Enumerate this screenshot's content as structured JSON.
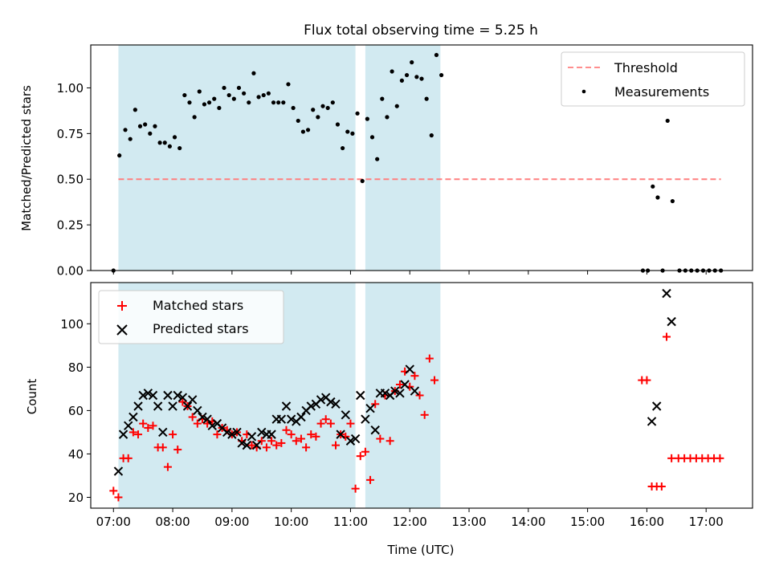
{
  "chart_data": [
    {
      "type": "scatter",
      "title": "Flux total observing time = 5.25 h",
      "xlabel": "",
      "ylabel": "Matched/Predicted stars",
      "xlim": [
        "06:37",
        "17:47"
      ],
      "ylim": [
        0,
        1.235
      ],
      "yticks": [
        0.0,
        0.25,
        0.5,
        0.75,
        1.0
      ],
      "ytick_labels": [
        "0.00",
        "0.25",
        "0.50",
        "0.75",
        "1.00"
      ],
      "grid": false,
      "legend_position": "upper right",
      "shaded_spans": [
        [
          "07:05",
          "11:05"
        ],
        [
          "11:15",
          "12:31"
        ]
      ],
      "shade_color": "#add8e6",
      "series": [
        {
          "name": "Threshold",
          "kind": "dashed-line",
          "color": "#ff7f7f",
          "x": [
            "07:05",
            "17:15"
          ],
          "y": [
            0.5,
            0.5
          ]
        },
        {
          "name": "Measurements",
          "kind": "dots",
          "color": "#000000",
          "points": [
            [
              "07:00",
              0.0
            ],
            [
              "07:06",
              0.63
            ],
            [
              "07:12",
              0.77
            ],
            [
              "07:17",
              0.72
            ],
            [
              "07:22",
              0.88
            ],
            [
              "07:27",
              0.79
            ],
            [
              "07:32",
              0.8
            ],
            [
              "07:37",
              0.75
            ],
            [
              "07:42",
              0.79
            ],
            [
              "07:47",
              0.7
            ],
            [
              "07:52",
              0.7
            ],
            [
              "07:57",
              0.68
            ],
            [
              "08:02",
              0.73
            ],
            [
              "08:07",
              0.67
            ],
            [
              "08:12",
              0.96
            ],
            [
              "08:17",
              0.92
            ],
            [
              "08:22",
              0.84
            ],
            [
              "08:27",
              0.98
            ],
            [
              "08:32",
              0.91
            ],
            [
              "08:37",
              0.92
            ],
            [
              "08:42",
              0.94
            ],
            [
              "08:47",
              0.89
            ],
            [
              "08:52",
              1.0
            ],
            [
              "08:57",
              0.96
            ],
            [
              "09:02",
              0.94
            ],
            [
              "09:07",
              1.0
            ],
            [
              "09:12",
              0.97
            ],
            [
              "09:17",
              0.92
            ],
            [
              "09:22",
              1.08
            ],
            [
              "09:27",
              0.95
            ],
            [
              "09:32",
              0.96
            ],
            [
              "09:37",
              0.97
            ],
            [
              "09:42",
              0.92
            ],
            [
              "09:47",
              0.92
            ],
            [
              "09:52",
              0.92
            ],
            [
              "09:57",
              1.02
            ],
            [
              "10:02",
              0.89
            ],
            [
              "10:07",
              0.82
            ],
            [
              "10:12",
              0.76
            ],
            [
              "10:17",
              0.77
            ],
            [
              "10:22",
              0.88
            ],
            [
              "10:27",
              0.84
            ],
            [
              "10:32",
              0.9
            ],
            [
              "10:37",
              0.89
            ],
            [
              "10:42",
              0.92
            ],
            [
              "10:47",
              0.8
            ],
            [
              "10:52",
              0.67
            ],
            [
              "10:57",
              0.76
            ],
            [
              "11:02",
              0.75
            ],
            [
              "11:07",
              0.86
            ],
            [
              "11:12",
              0.49
            ],
            [
              "11:17",
              0.83
            ],
            [
              "11:22",
              0.73
            ],
            [
              "11:27",
              0.61
            ],
            [
              "11:32",
              0.94
            ],
            [
              "11:37",
              0.84
            ],
            [
              "11:42",
              1.09
            ],
            [
              "11:47",
              0.9
            ],
            [
              "11:52",
              1.04
            ],
            [
              "11:57",
              1.07
            ],
            [
              "12:02",
              1.14
            ],
            [
              "12:07",
              1.06
            ],
            [
              "12:12",
              1.05
            ],
            [
              "12:17",
              0.94
            ],
            [
              "12:22",
              0.74
            ],
            [
              "12:27",
              1.18
            ],
            [
              "12:32",
              1.07
            ],
            [
              "15:56",
              0.0
            ],
            [
              "16:01",
              0.0
            ],
            [
              "16:06",
              0.46
            ],
            [
              "16:11",
              0.4
            ],
            [
              "16:16",
              0.0
            ],
            [
              "16:21",
              0.82
            ],
            [
              "16:26",
              0.38
            ],
            [
              "16:33",
              0.0
            ],
            [
              "16:39",
              0.0
            ],
            [
              "16:45",
              0.0
            ],
            [
              "16:51",
              0.0
            ],
            [
              "16:57",
              0.0
            ],
            [
              "17:03",
              0.0
            ],
            [
              "17:09",
              0.0
            ],
            [
              "17:15",
              0.0
            ]
          ]
        }
      ]
    },
    {
      "type": "scatter",
      "title": "",
      "xlabel": "Time (UTC)",
      "ylabel": "Count",
      "xlim": [
        "06:37",
        "17:47"
      ],
      "ylim": [
        15,
        119
      ],
      "yticks": [
        20,
        40,
        60,
        80,
        100
      ],
      "ytick_labels": [
        "20",
        "40",
        "60",
        "80",
        "100"
      ],
      "xticks": [
        "07:00",
        "08:00",
        "09:00",
        "10:00",
        "11:00",
        "12:00",
        "13:00",
        "14:00",
        "15:00",
        "16:00",
        "17:00"
      ],
      "grid": false,
      "legend_position": "upper left",
      "shaded_spans": [
        [
          "07:05",
          "11:05"
        ],
        [
          "11:15",
          "12:31"
        ]
      ],
      "shade_color": "#add8e6",
      "series": [
        {
          "name": "Matched stars",
          "marker": "plus",
          "color": "#ff0000",
          "points": [
            [
              "07:00",
              23
            ],
            [
              "07:05",
              20
            ],
            [
              "07:10",
              38
            ],
            [
              "07:15",
              38
            ],
            [
              "07:20",
              50
            ],
            [
              "07:25",
              49
            ],
            [
              "07:30",
              54
            ],
            [
              "07:35",
              52
            ],
            [
              "07:40",
              53
            ],
            [
              "07:45",
              43
            ],
            [
              "07:50",
              43
            ],
            [
              "07:55",
              34
            ],
            [
              "08:00",
              49
            ],
            [
              "08:05",
              42
            ],
            [
              "08:10",
              64
            ],
            [
              "08:15",
              62
            ],
            [
              "08:20",
              57
            ],
            [
              "08:25",
              54
            ],
            [
              "08:30",
              56
            ],
            [
              "08:35",
              54
            ],
            [
              "08:40",
              55
            ],
            [
              "08:45",
              49
            ],
            [
              "08:50",
              52
            ],
            [
              "08:55",
              51
            ],
            [
              "09:00",
              49
            ],
            [
              "09:05",
              50
            ],
            [
              "09:10",
              46
            ],
            [
              "09:15",
              49
            ],
            [
              "09:20",
              44
            ],
            [
              "09:25",
              43
            ],
            [
              "09:30",
              46
            ],
            [
              "09:35",
              43
            ],
            [
              "09:40",
              46
            ],
            [
              "09:45",
              44
            ],
            [
              "09:50",
              45
            ],
            [
              "09:55",
              51
            ],
            [
              "10:00",
              49
            ],
            [
              "10:05",
              46
            ],
            [
              "10:10",
              47
            ],
            [
              "10:15",
              43
            ],
            [
              "10:20",
              49
            ],
            [
              "10:25",
              48
            ],
            [
              "10:30",
              54
            ],
            [
              "10:35",
              56
            ],
            [
              "10:40",
              54
            ],
            [
              "10:45",
              44
            ],
            [
              "10:50",
              49
            ],
            [
              "10:55",
              48
            ],
            [
              "11:00",
              54
            ],
            [
              "11:05",
              24
            ],
            [
              "11:10",
              39
            ],
            [
              "11:15",
              41
            ],
            [
              "11:20",
              28
            ],
            [
              "11:25",
              63
            ],
            [
              "11:30",
              47
            ],
            [
              "11:35",
              67
            ],
            [
              "11:40",
              46
            ],
            [
              "11:45",
              69
            ],
            [
              "11:50",
              72
            ],
            [
              "11:55",
              78
            ],
            [
              "12:00",
              71
            ],
            [
              "12:05",
              76
            ],
            [
              "12:10",
              67
            ],
            [
              "12:15",
              58
            ],
            [
              "12:20",
              84
            ],
            [
              "12:25",
              74
            ],
            [
              "15:55",
              74
            ],
            [
              "16:00",
              74
            ],
            [
              "16:05",
              25
            ],
            [
              "16:10",
              25
            ],
            [
              "16:15",
              25
            ],
            [
              "16:20",
              94
            ],
            [
              "16:25",
              38
            ],
            [
              "16:32",
              38
            ],
            [
              "16:38",
              38
            ],
            [
              "16:44",
              38
            ],
            [
              "16:50",
              38
            ],
            [
              "16:56",
              38
            ],
            [
              "17:02",
              38
            ],
            [
              "17:08",
              38
            ],
            [
              "17:14",
              38
            ]
          ]
        },
        {
          "name": "Predicted stars",
          "marker": "x",
          "color": "#000000",
          "points": [
            [
              "07:05",
              32
            ],
            [
              "07:10",
              49
            ],
            [
              "07:15",
              53
            ],
            [
              "07:20",
              57
            ],
            [
              "07:25",
              62
            ],
            [
              "07:30",
              67
            ],
            [
              "07:35",
              68
            ],
            [
              "07:40",
              67
            ],
            [
              "07:45",
              62
            ],
            [
              "07:50",
              50
            ],
            [
              "07:55",
              67
            ],
            [
              "08:00",
              62
            ],
            [
              "08:05",
              67
            ],
            [
              "08:10",
              66
            ],
            [
              "08:15",
              62
            ],
            [
              "08:20",
              65
            ],
            [
              "08:25",
              60
            ],
            [
              "08:30",
              57
            ],
            [
              "08:35",
              56
            ],
            [
              "08:40",
              53
            ],
            [
              "08:45",
              54
            ],
            [
              "08:50",
              52
            ],
            [
              "08:55",
              50
            ],
            [
              "09:00",
              49
            ],
            [
              "09:05",
              50
            ],
            [
              "09:10",
              45
            ],
            [
              "09:15",
              44
            ],
            [
              "09:20",
              48
            ],
            [
              "09:25",
              44
            ],
            [
              "09:30",
              50
            ],
            [
              "09:35",
              49
            ],
            [
              "09:40",
              49
            ],
            [
              "09:45",
              56
            ],
            [
              "09:50",
              56
            ],
            [
              "09:55",
              62
            ],
            [
              "10:00",
              56
            ],
            [
              "10:05",
              55
            ],
            [
              "10:10",
              57
            ],
            [
              "10:15",
              60
            ],
            [
              "10:20",
              62
            ],
            [
              "10:25",
              63
            ],
            [
              "10:30",
              65
            ],
            [
              "10:35",
              66
            ],
            [
              "10:40",
              64
            ],
            [
              "10:45",
              63
            ],
            [
              "10:50",
              49
            ],
            [
              "10:55",
              58
            ],
            [
              "11:00",
              46
            ],
            [
              "11:05",
              47
            ],
            [
              "11:10",
              67
            ],
            [
              "11:15",
              56
            ],
            [
              "11:20",
              61
            ],
            [
              "11:25",
              51
            ],
            [
              "11:30",
              68
            ],
            [
              "11:35",
              68
            ],
            [
              "11:40",
              67
            ],
            [
              "11:45",
              69
            ],
            [
              "11:50",
              68
            ],
            [
              "11:55",
              72
            ],
            [
              "12:00",
              79
            ],
            [
              "12:05",
              69
            ],
            [
              "16:05",
              55
            ],
            [
              "16:10",
              62
            ],
            [
              "16:20",
              114
            ],
            [
              "16:25",
              101
            ]
          ]
        }
      ]
    }
  ]
}
